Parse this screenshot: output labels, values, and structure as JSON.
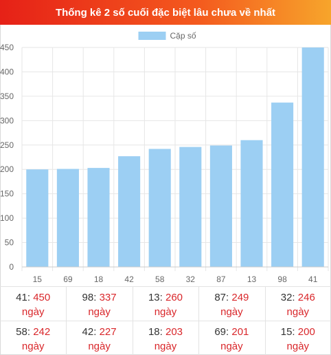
{
  "header": {
    "title": "Thống kê 2 số cuối đặc biệt lâu chưa về nhất"
  },
  "chart_data": {
    "type": "bar",
    "legend": "top-center",
    "grid": true,
    "categories": [
      "15",
      "69",
      "18",
      "42",
      "58",
      "32",
      "87",
      "13",
      "98",
      "41"
    ],
    "series": [
      {
        "name": "Cặp số",
        "values": [
          200,
          201,
          203,
          227,
          242,
          246,
          249,
          260,
          337,
          450
        ]
      }
    ],
    "yticks": [
      "0",
      "50",
      "100",
      "150",
      "200",
      "250",
      "300",
      "350",
      "400",
      "450"
    ],
    "ylim": [
      0,
      450
    ],
    "colors": {
      "bar": "#9ccff3",
      "grid": "#e6e6e6",
      "axis": "#666666"
    }
  },
  "stats": {
    "unit": "ngày",
    "items": [
      {
        "num": "41",
        "days": "450"
      },
      {
        "num": "98",
        "days": "337"
      },
      {
        "num": "13",
        "days": "260"
      },
      {
        "num": "87",
        "days": "249"
      },
      {
        "num": "32",
        "days": "246"
      },
      {
        "num": "58",
        "days": "242"
      },
      {
        "num": "42",
        "days": "227"
      },
      {
        "num": "18",
        "days": "203"
      },
      {
        "num": "69",
        "days": "201"
      },
      {
        "num": "15",
        "days": "200"
      }
    ]
  }
}
